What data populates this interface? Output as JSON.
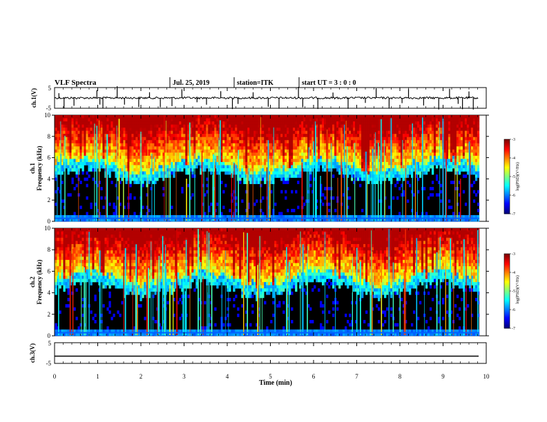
{
  "header": {
    "title": "VLF Spectra",
    "date": "Jul. 25, 2019",
    "station": "station=ITK",
    "start": "start UT =  3 : 0 : 0"
  },
  "chart_data": [
    {
      "type": "line",
      "name": "ch1-waveform",
      "ylabel": "ch.1(V)",
      "ylim": [
        -5,
        5
      ],
      "yticks": [
        "5",
        "-5"
      ],
      "xlim": [
        0,
        10
      ],
      "baseline": 0,
      "spikes_min": [
        0.1,
        0.22,
        0.45,
        0.98,
        1.05,
        1.12,
        1.45,
        1.62,
        1.95,
        2.2,
        2.45,
        2.72,
        2.95,
        3.3,
        3.52,
        3.85,
        4.12,
        4.25,
        4.6,
        4.95,
        5.2,
        5.65,
        5.75,
        6.1,
        6.45,
        6.8,
        7.2,
        7.45,
        7.75,
        8.05,
        8.2,
        8.55,
        8.9,
        9.15,
        9.35,
        9.45,
        9.6,
        9.7
      ]
    },
    {
      "type": "heatmap",
      "name": "ch1-spectrogram",
      "ylabel_line1": "ch.1",
      "ylabel_line2": "Frequency (kHz)",
      "ylim": [
        0,
        10
      ],
      "yticks": [
        "0",
        "2",
        "4",
        "6",
        "8",
        "10"
      ],
      "xlim": [
        0,
        9.83
      ],
      "colorbar": {
        "label": "log(PSD)(V²/Hz)",
        "range": [
          -7,
          -3
        ],
        "ticks": [
          "-3",
          "-4",
          "-5",
          "-6",
          "-7"
        ]
      }
    },
    {
      "type": "heatmap",
      "name": "ch2-spectrogram",
      "ylabel_line1": "ch.2",
      "ylabel_line2": "Frequency (kHz)",
      "ylim": [
        0,
        10
      ],
      "yticks": [
        "0",
        "2",
        "4",
        "6",
        "8",
        "10"
      ],
      "xlim": [
        0,
        9.83
      ],
      "colorbar": {
        "label": "log(PSD)(V²/Hz)",
        "range": [
          -7,
          -3
        ],
        "ticks": [
          "-3",
          "-4",
          "-5",
          "-6",
          "-7"
        ]
      }
    },
    {
      "type": "line",
      "name": "ch3-waveform",
      "ylabel": "ch.3(V)",
      "ylim": [
        -5,
        5
      ],
      "yticks": [
        "5",
        "-5"
      ],
      "xlim": [
        0,
        10
      ],
      "baseline": -1.5
    }
  ],
  "xaxis": {
    "label": "Time (min)",
    "ticks": [
      "0",
      "1",
      "2",
      "3",
      "4",
      "5",
      "6",
      "7",
      "8",
      "9",
      "10"
    ]
  },
  "colors": {
    "background": "#ffffff",
    "axis": "#000000",
    "spec_low": "#000000",
    "spec_high": "#ff0000"
  }
}
